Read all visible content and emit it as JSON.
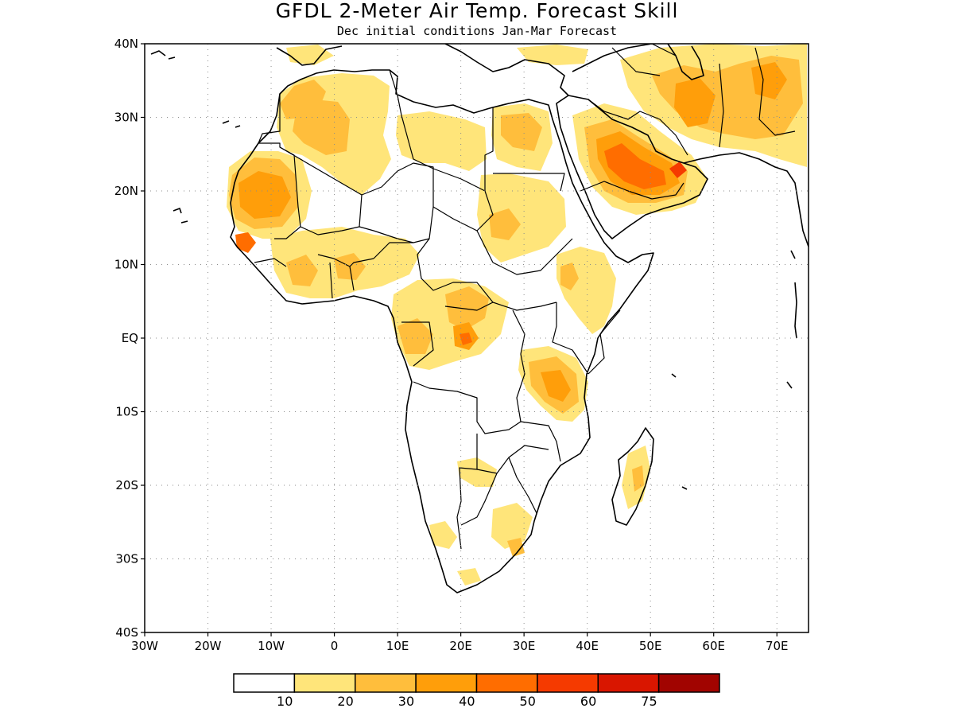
{
  "title": "GFDL 2-Meter Air Temp. Forecast Skill",
  "subtitle": "Dec initial conditions  Jan-Mar Forecast",
  "map": {
    "lon_range": [
      -30,
      75
    ],
    "lat_range": [
      -40,
      40
    ],
    "grid_lines": true,
    "lon_ticks": [
      {
        "lon": -30,
        "label": "30W"
      },
      {
        "lon": -20,
        "label": "20W"
      },
      {
        "lon": -10,
        "label": "10W"
      },
      {
        "lon": 0,
        "label": "0"
      },
      {
        "lon": 10,
        "label": "10E"
      },
      {
        "lon": 20,
        "label": "20E"
      },
      {
        "lon": 30,
        "label": "30E"
      },
      {
        "lon": 40,
        "label": "40E"
      },
      {
        "lon": 50,
        "label": "50E"
      },
      {
        "lon": 60,
        "label": "60E"
      },
      {
        "lon": 70,
        "label": "70E"
      }
    ],
    "lat_ticks": [
      {
        "lat": 40,
        "label": "40N"
      },
      {
        "lat": 30,
        "label": "30N"
      },
      {
        "lat": 20,
        "label": "20N"
      },
      {
        "lat": 10,
        "label": "10N"
      },
      {
        "lat": 0,
        "label": "EQ"
      },
      {
        "lat": -10,
        "label": "10S"
      },
      {
        "lat": -20,
        "label": "20S"
      },
      {
        "lat": -30,
        "label": "30S"
      },
      {
        "lat": -40,
        "label": "40S"
      }
    ]
  },
  "colorbar": {
    "colors": [
      "#ffffff",
      "#ffe57a",
      "#ffbe3c",
      "#ff9e0a",
      "#ff6d00",
      "#f53a00",
      "#d91600",
      "#a10400"
    ],
    "labels": [
      "10",
      "20",
      "30",
      "40",
      "50",
      "60",
      "75"
    ]
  },
  "skill_levels": {
    "10-20": "#ffe57a",
    "20-30": "#ffbe3c",
    "30-40": "#ff9e0a",
    "40-50": "#ff6d00",
    "50-60": "#f53a00"
  }
}
